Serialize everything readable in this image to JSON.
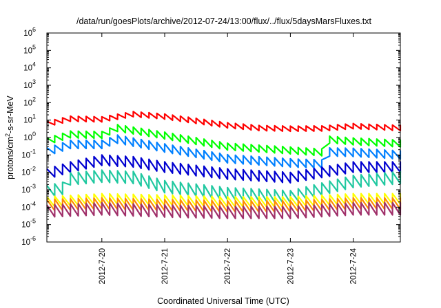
{
  "chart_data": {
    "type": "line",
    "title": "/data/run/goesPlots/archive/2012-07-24/13:00/flux/../flux/5daysMarsFluxes.txt",
    "xlabel": "Coordinated Universal Time (UTC)",
    "ylabel_main": "protons/cm",
    "ylabel_sup": "2",
    "ylabel_rest": "-s-sr-MeV",
    "yscale": "log",
    "ylim_exponents": [
      -6,
      6
    ],
    "y_tick_base": "10",
    "y_tick_exponents": [
      "-6",
      "-5",
      "-4",
      "-3",
      "-2",
      "-1",
      "0",
      "1",
      "2",
      "3",
      "4",
      "5",
      "6"
    ],
    "x_range": [
      "2012-07-19T03:00",
      "2012-07-24T18:00"
    ],
    "x_ticks": [
      "2012-7-20",
      "2012-7-21",
      "2012-7-22",
      "2012-7-23",
      "2012-7-24"
    ],
    "x_tick_dates": [
      "2012-07-20T00:00",
      "2012-07-21T00:00",
      "2012-07-22T00:00",
      "2012-07-23T00:00",
      "2012-07-24T00:00"
    ],
    "grid": false,
    "sawtooth_period_hours": 3,
    "series": [
      {
        "color": "#ff0000",
        "profile": [
          [
            "2012-07-19T03:00",
            6
          ],
          [
            "2012-07-19T12:00",
            12
          ],
          [
            "2012-07-20T00:00",
            11
          ],
          [
            "2012-07-20T12:00",
            22
          ],
          [
            "2012-07-21T00:00",
            16
          ],
          [
            "2012-07-21T12:00",
            9
          ],
          [
            "2012-07-22T00:00",
            5
          ],
          [
            "2012-07-22T12:00",
            3.5
          ],
          [
            "2012-07-23T00:00",
            3.2
          ],
          [
            "2012-07-23T12:00",
            3.3
          ],
          [
            "2012-07-24T00:00",
            4.5
          ],
          [
            "2012-07-24T18:00",
            3.5
          ]
        ],
        "amplitude": 2.0
      },
      {
        "color": "#00ff00",
        "profile": [
          [
            "2012-07-19T03:00",
            0.6
          ],
          [
            "2012-07-19T12:00",
            1.5
          ],
          [
            "2012-07-20T00:00",
            1.4
          ],
          [
            "2012-07-20T06:00",
            3.5
          ],
          [
            "2012-07-21T00:00",
            1.3
          ],
          [
            "2012-07-22T00:00",
            0.3
          ],
          [
            "2012-07-23T00:00",
            0.18
          ],
          [
            "2012-07-23T12:00",
            0.14
          ],
          [
            "2012-07-23T13:00",
            0.8
          ],
          [
            "2012-07-24T00:00",
            0.6
          ],
          [
            "2012-07-24T18:00",
            0.45
          ]
        ],
        "amplitude": 2.5
      },
      {
        "color": "#0080ff",
        "profile": [
          [
            "2012-07-19T03:00",
            0.15
          ],
          [
            "2012-07-19T12:00",
            0.4
          ],
          [
            "2012-07-20T00:00",
            0.4
          ],
          [
            "2012-07-20T06:00",
            0.8
          ],
          [
            "2012-07-21T00:00",
            0.25
          ],
          [
            "2012-07-22T00:00",
            0.06
          ],
          [
            "2012-07-23T00:00",
            0.035
          ],
          [
            "2012-07-23T12:00",
            0.03
          ],
          [
            "2012-07-23T13:00",
            0.15
          ],
          [
            "2012-07-24T00:00",
            0.14
          ],
          [
            "2012-07-24T18:00",
            0.1
          ]
        ],
        "amplitude": 3.0
      },
      {
        "color": "#0000d0",
        "profile": [
          [
            "2012-07-19T03:00",
            0.008
          ],
          [
            "2012-07-19T12:00",
            0.02
          ],
          [
            "2012-07-20T00:00",
            0.05
          ],
          [
            "2012-07-20T12:00",
            0.04
          ],
          [
            "2012-07-21T00:00",
            0.02
          ],
          [
            "2012-07-22T00:00",
            0.008
          ],
          [
            "2012-07-23T00:00",
            0.005
          ],
          [
            "2012-07-24T00:00",
            0.02
          ],
          [
            "2012-07-24T18:00",
            0.02
          ]
        ],
        "amplitude": 4.0
      },
      {
        "color": "#20c8a0",
        "profile": [
          [
            "2012-07-19T03:00",
            0.0008
          ],
          [
            "2012-07-19T09:00",
            0.0012
          ],
          [
            "2012-07-19T10:00",
            0.004
          ],
          [
            "2012-07-20T00:00",
            0.006
          ],
          [
            "2012-07-20T12:00",
            0.005
          ],
          [
            "2012-07-21T00:00",
            0.0015
          ],
          [
            "2012-07-22T00:00",
            0.0006
          ],
          [
            "2012-07-23T00:00",
            0.0004
          ],
          [
            "2012-07-24T00:00",
            0.003
          ],
          [
            "2012-07-24T18:00",
            0.005
          ]
        ],
        "amplitude": 5.0
      },
      {
        "color": "#ffff00",
        "profile": [
          [
            "2012-07-19T03:00",
            0.0002
          ],
          [
            "2012-07-20T00:00",
            0.0003
          ],
          [
            "2012-07-21T00:00",
            0.00025
          ],
          [
            "2012-07-22T00:00",
            0.0002
          ],
          [
            "2012-07-23T00:00",
            0.0002
          ],
          [
            "2012-07-24T00:00",
            0.0003
          ],
          [
            "2012-07-24T18:00",
            0.0003
          ]
        ],
        "amplitude": 4.0
      },
      {
        "color": "#ff8c00",
        "profile": [
          [
            "2012-07-19T03:00",
            0.00013
          ],
          [
            "2012-07-20T00:00",
            0.00016
          ],
          [
            "2012-07-21T00:00",
            0.00013
          ],
          [
            "2012-07-22T00:00",
            0.00011
          ],
          [
            "2012-07-23T00:00",
            0.00011
          ],
          [
            "2012-07-24T00:00",
            0.00016
          ],
          [
            "2012-07-24T18:00",
            0.00016
          ]
        ],
        "amplitude": 4.5
      },
      {
        "color": "#a0306a",
        "profile": [
          [
            "2012-07-19T03:00",
            6e-05
          ],
          [
            "2012-07-20T00:00",
            8e-05
          ],
          [
            "2012-07-21T00:00",
            6e-05
          ],
          [
            "2012-07-22T00:00",
            5e-05
          ],
          [
            "2012-07-23T00:00",
            5e-05
          ],
          [
            "2012-07-24T00:00",
            8e-05
          ],
          [
            "2012-07-24T18:00",
            8e-05
          ]
        ],
        "amplitude": 5.0
      }
    ]
  }
}
